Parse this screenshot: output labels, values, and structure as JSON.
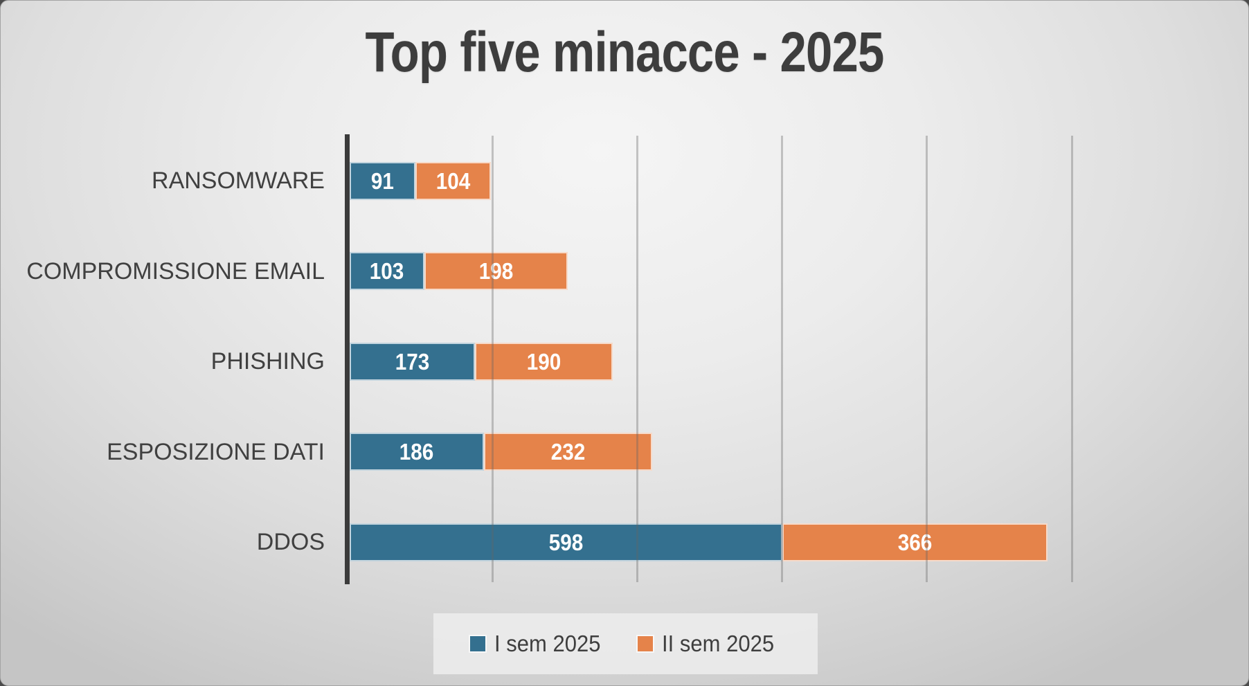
{
  "title": "Top five minacce - 2025",
  "chart_data": {
    "type": "bar",
    "orientation": "horizontal",
    "stacked": true,
    "title": "Top five minacce - 2025",
    "categories": [
      "RANSOMWARE",
      "COMPROMISSIONE EMAIL",
      "PHISHING",
      "ESPOSIZIONE DATI",
      "DDOS"
    ],
    "series": [
      {
        "name": "I sem 2025",
        "color": "#34708F",
        "values": [
          91,
          103,
          173,
          186,
          598
        ]
      },
      {
        "name": "II sem 2025",
        "color": "#E5834A",
        "values": [
          104,
          198,
          190,
          232,
          366
        ]
      }
    ],
    "totals": [
      195,
      301,
      363,
      418,
      964
    ],
    "value_labels": "inside-center",
    "xlim": [
      0,
      1232
    ],
    "gridline_step": 200,
    "grid": "vertical-only",
    "x_tick_labels_visible": false,
    "legend_position": "bottom-center"
  },
  "colors": {
    "series1": "#34708F",
    "series2": "#E5834A",
    "axis_line": "#3B3B3B",
    "gridline": "#A8A8A8",
    "value_label_text": "#FFFFFF",
    "title_text": "#3D3D3D",
    "category_text": "#404040",
    "legend_box_bg": "#EFEFEF",
    "slide_bg_light": "#F5F5F5",
    "slide_bg_dark": "#C5C5C5"
  }
}
